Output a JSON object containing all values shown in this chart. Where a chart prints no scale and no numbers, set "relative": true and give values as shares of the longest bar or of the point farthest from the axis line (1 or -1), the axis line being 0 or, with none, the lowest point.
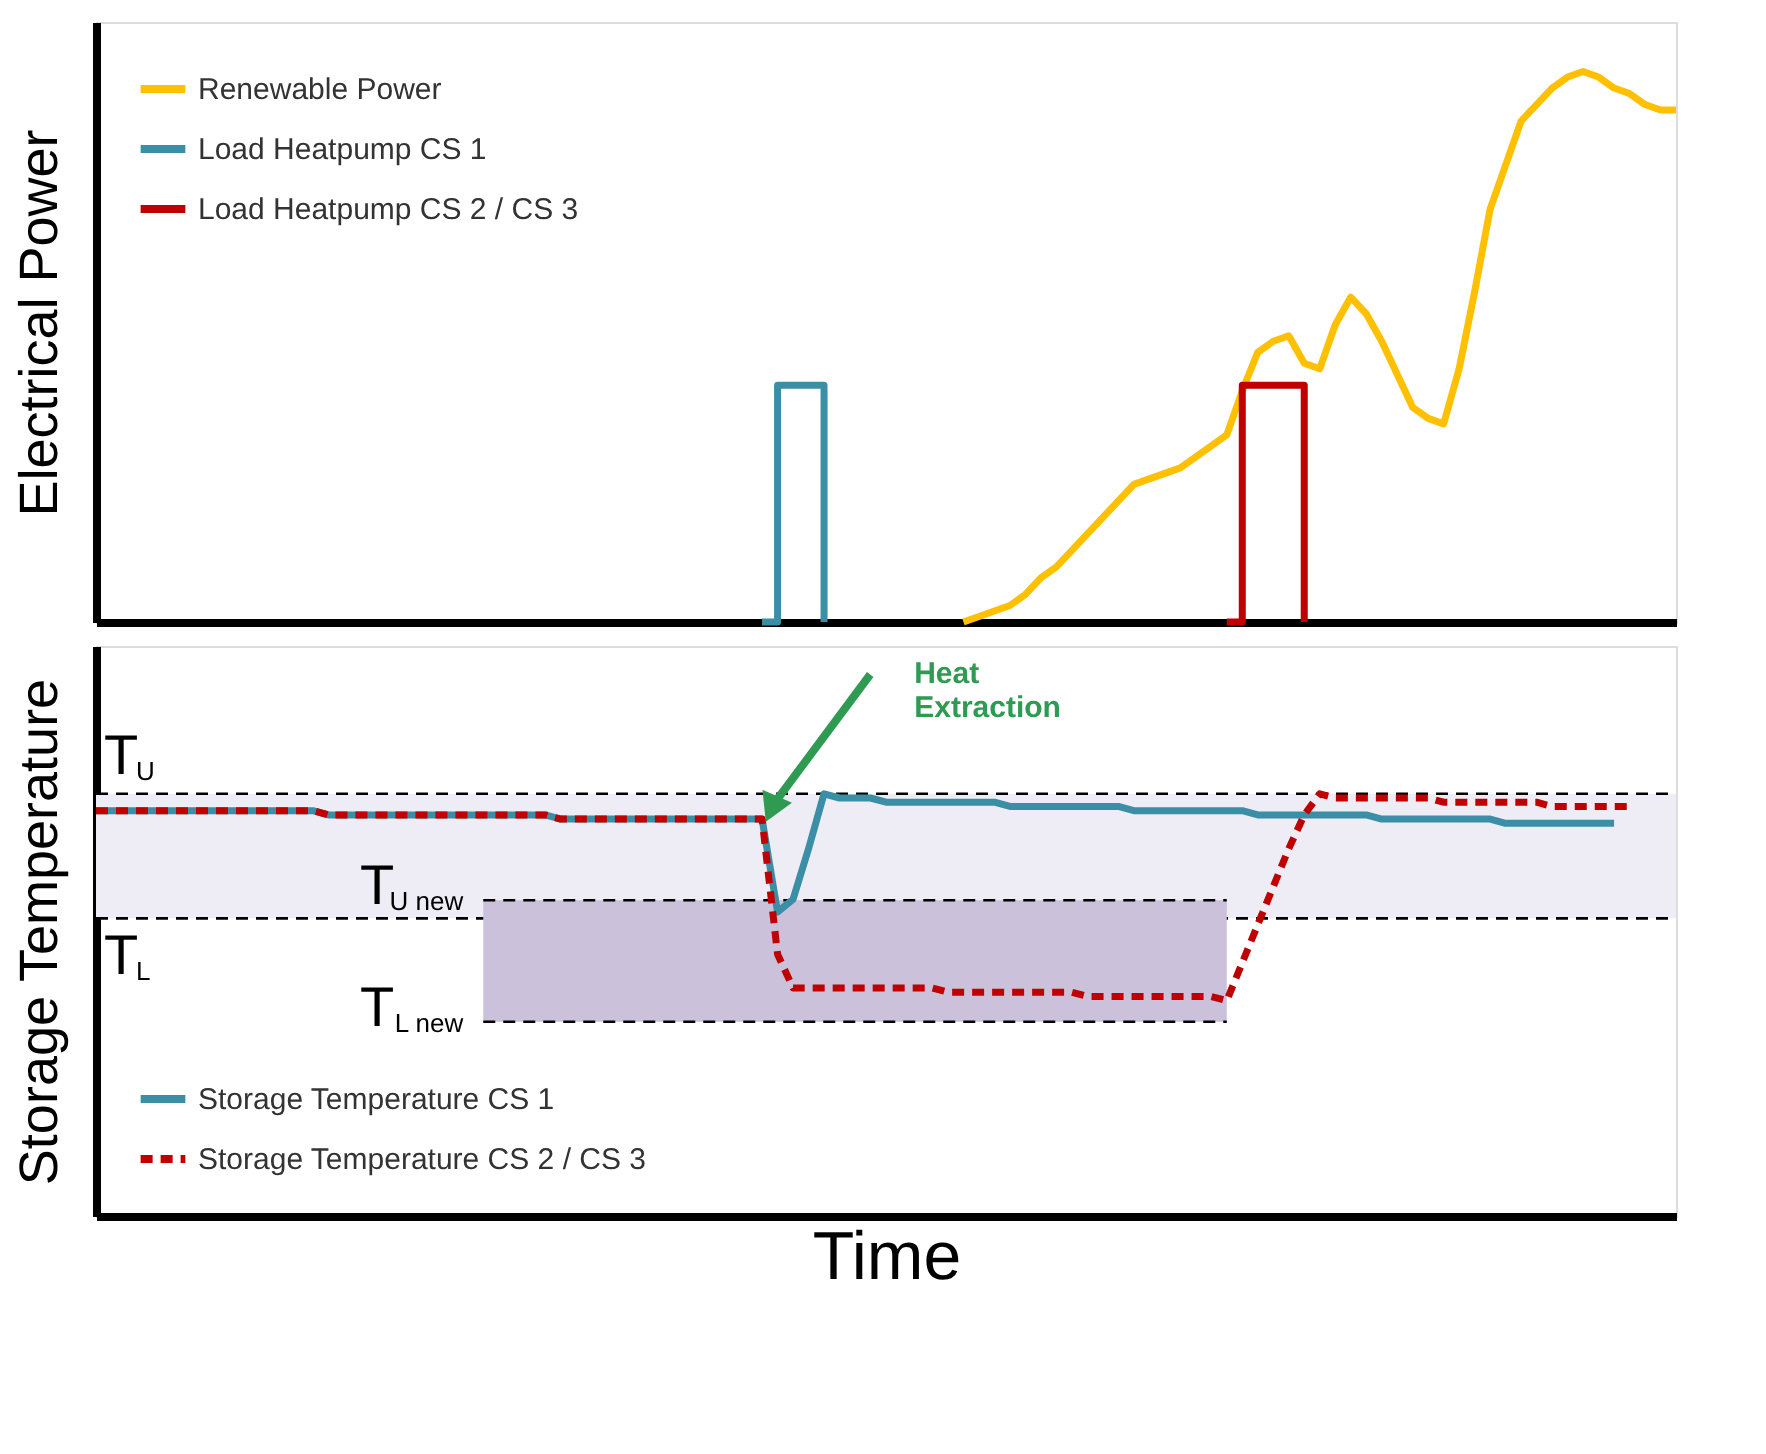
{
  "chart_data": [
    {
      "type": "line",
      "relative": true,
      "ylabel": "Electrical Power",
      "tick_labels": false,
      "grid": false,
      "legend": "top left",
      "categories": [
        null,
        null,
        null,
        null,
        null,
        null,
        null,
        null,
        null,
        null,
        null,
        null,
        null,
        null,
        null,
        null,
        null,
        null,
        null,
        null,
        null,
        null,
        null,
        null,
        null,
        null,
        null,
        null,
        null,
        null,
        null,
        null,
        null,
        null,
        null,
        null,
        null,
        null,
        null,
        null,
        null,
        null,
        null,
        null,
        null,
        null,
        null,
        null,
        null,
        null,
        null,
        null,
        null,
        null,
        null,
        null,
        null,
        null,
        null,
        null,
        null,
        null,
        null,
        null,
        null,
        null,
        null,
        null,
        null,
        null,
        null,
        null,
        null,
        null,
        null,
        null,
        null,
        null,
        null,
        null,
        null,
        null,
        null,
        null,
        null,
        null,
        null,
        null,
        null,
        null,
        null,
        null,
        null,
        null,
        null,
        null,
        null,
        null,
        null,
        null,
        null,
        null,
        null
      ],
      "series": [
        {
          "name": "Renewable Power",
          "color": "#ffc000",
          "values": [
            null,
            null,
            null,
            null,
            null,
            null,
            null,
            null,
            null,
            null,
            null,
            null,
            null,
            null,
            null,
            null,
            null,
            null,
            null,
            null,
            null,
            null,
            null,
            null,
            null,
            null,
            null,
            null,
            null,
            null,
            null,
            null,
            null,
            null,
            null,
            null,
            null,
            null,
            null,
            null,
            null,
            null,
            null,
            null,
            null,
            null,
            null,
            null,
            null,
            null,
            null,
            null,
            null,
            null,
            null,
            null,
            0,
            0.01,
            0.02,
            0.03,
            0.05,
            0.08,
            0.1,
            0.13,
            0.16,
            0.19,
            0.22,
            0.25,
            0.26,
            0.27,
            0.28,
            0.3,
            0.32,
            0.34,
            0.42,
            0.49,
            0.51,
            0.52,
            0.47,
            0.46,
            0.54,
            0.59,
            0.56,
            0.51,
            0.45,
            0.39,
            0.37,
            0.36,
            0.46,
            0.6,
            0.75,
            0.83,
            0.91,
            0.94,
            0.97,
            0.99,
            1.0,
            0.99,
            0.97,
            0.96,
            0.94,
            0.93,
            0.93
          ]
        },
        {
          "name": "Load Heatpump CS 1",
          "type": "step",
          "color": "#3a8ea5",
          "values": [
            null,
            null,
            null,
            null,
            null,
            null,
            null,
            null,
            null,
            null,
            null,
            null,
            null,
            null,
            null,
            null,
            null,
            null,
            null,
            null,
            null,
            null,
            null,
            null,
            null,
            null,
            null,
            null,
            null,
            null,
            null,
            null,
            null,
            null,
            null,
            null,
            null,
            null,
            null,
            null,
            null,
            null,
            null,
            0,
            0.43,
            0.43,
            0.43,
            0,
            null,
            null,
            null,
            null,
            null,
            null,
            null,
            null,
            null,
            null,
            null,
            null,
            null,
            null,
            null,
            null,
            null,
            null,
            null,
            null,
            null,
            null,
            null,
            null,
            null,
            null,
            null,
            null,
            null,
            null,
            null,
            null,
            null,
            null,
            null,
            null,
            null,
            null,
            null,
            null,
            null,
            null,
            null,
            null,
            null,
            null,
            null,
            null,
            null,
            null,
            null,
            null,
            null,
            null,
            null
          ]
        },
        {
          "name": "Load Heatpump CS 2 / CS 3",
          "type": "step",
          "color": "#c00000",
          "values": [
            null,
            null,
            null,
            null,
            null,
            null,
            null,
            null,
            null,
            null,
            null,
            null,
            null,
            null,
            null,
            null,
            null,
            null,
            null,
            null,
            null,
            null,
            null,
            null,
            null,
            null,
            null,
            null,
            null,
            null,
            null,
            null,
            null,
            null,
            null,
            null,
            null,
            null,
            null,
            null,
            null,
            null,
            null,
            null,
            null,
            null,
            null,
            null,
            null,
            null,
            null,
            null,
            null,
            null,
            null,
            null,
            null,
            null,
            null,
            null,
            null,
            null,
            null,
            null,
            null,
            null,
            null,
            null,
            null,
            null,
            null,
            null,
            null,
            0,
            0.43,
            0.43,
            0.43,
            0.43,
            0,
            null,
            null,
            null,
            null,
            null,
            null,
            null,
            null,
            null,
            null,
            null,
            null,
            null,
            null,
            null,
            null,
            null,
            null,
            null,
            null,
            null,
            null,
            null,
            null
          ]
        }
      ]
    },
    {
      "type": "line",
      "relative": true,
      "ylabel": "Storage Temperature",
      "xlabel": "Time",
      "tick_labels": false,
      "grid": false,
      "legend": "bottom left",
      "categories": [
        null,
        null,
        null,
        null,
        null,
        null,
        null,
        null,
        null,
        null,
        null,
        null,
        null,
        null,
        null,
        null,
        null,
        null,
        null,
        null,
        null,
        null,
        null,
        null,
        null,
        null,
        null,
        null,
        null,
        null,
        null,
        null,
        null,
        null,
        null,
        null,
        null,
        null,
        null,
        null,
        null,
        null,
        null,
        null,
        null,
        null,
        null,
        null,
        null,
        null,
        null,
        null,
        null,
        null,
        null,
        null,
        null,
        null,
        null,
        null,
        null,
        null,
        null,
        null,
        null,
        null,
        null,
        null,
        null,
        null,
        null,
        null,
        null,
        null,
        null,
        null,
        null,
        null,
        null,
        null,
        null,
        null,
        null,
        null,
        null,
        null,
        null,
        null,
        null,
        null,
        null,
        null,
        null,
        null,
        null,
        null,
        null,
        null,
        null,
        null,
        null,
        null,
        null
      ],
      "series": [
        {
          "type": "line",
          "color": "#000000",
          "line_style": "dashed",
          "values": [
            null,
            null,
            null,
            null,
            null,
            null,
            null,
            null,
            null,
            null,
            null,
            null,
            null,
            null,
            null,
            null,
            null,
            null,
            null,
            null,
            null,
            null,
            null,
            null,
            null,
            0.748,
            0.748,
            0.748,
            0.748,
            0.748,
            0.748,
            0.748,
            0.748,
            0.748,
            0.748,
            0.748,
            0.748,
            0.748,
            0.748,
            0.748,
            0.748,
            0.748,
            0.748,
            0.748,
            0.748,
            0.748,
            0.748,
            0.748,
            0.748,
            0.748,
            0.748,
            0.748,
            0.748,
            0.748,
            0.748,
            0.748,
            0.748,
            0.748,
            0.748,
            0.748,
            0.748,
            0.748,
            0.748,
            0.748,
            0.748,
            0.748,
            0.748,
            0.748,
            0.748,
            0.748,
            0.748,
            0.748,
            0.748,
            0.748,
            null,
            null,
            null,
            null,
            null,
            null,
            null,
            null,
            null,
            null,
            null,
            null,
            null,
            null,
            null,
            null,
            null,
            null,
            null,
            null,
            null,
            null,
            null,
            null,
            null,
            null,
            null,
            null,
            null
          ],
          "upper": [
            null,
            null,
            null,
            null,
            null,
            null,
            null,
            null,
            null,
            null,
            null,
            null,
            null,
            null,
            null,
            null,
            null,
            null,
            null,
            null,
            null,
            null,
            null,
            null,
            null,
            0.748,
            0.748,
            0.748,
            0.748,
            0.748,
            0.748,
            0.748,
            0.748,
            0.748,
            0.748,
            0.748,
            0.748,
            0.748,
            0.748,
            0.748,
            0.748,
            0.748,
            0.748,
            0.748,
            0.748,
            0.748,
            0.748,
            0.748,
            0.748,
            0.748,
            0.748,
            0.748,
            0.748,
            0.748,
            0.748,
            0.748,
            0.748,
            0.748,
            0.748,
            0.748,
            0.748,
            0.748,
            0.748,
            0.748,
            0.748,
            0.748,
            0.748,
            0.748,
            0.748,
            0.748,
            0.748,
            0.748,
            0.748,
            0.748,
            null,
            null,
            null,
            null,
            null,
            null,
            null,
            null,
            null,
            null,
            null,
            null,
            null,
            null,
            null,
            null,
            null,
            null,
            null,
            null,
            null,
            null,
            null,
            null,
            null,
            null,
            null,
            null,
            null
          ],
          "lower": [
            null,
            null,
            null,
            null,
            null,
            null,
            null,
            null,
            null,
            null,
            null,
            null,
            null,
            null,
            null,
            null,
            null,
            null,
            null,
            null,
            null,
            null,
            null,
            null,
            null,
            0.46,
            0.46,
            0.46,
            0.46,
            0.46,
            0.46,
            0.46,
            0.46,
            0.46,
            0.46,
            0.46,
            0.46,
            0.46,
            0.46,
            0.46,
            0.46,
            0.46,
            0.46,
            0.46,
            0.46,
            0.46,
            0.46,
            0.46,
            0.46,
            0.46,
            0.46,
            0.46,
            0.46,
            0.46,
            0.46,
            0.46,
            0.46,
            0.46,
            0.46,
            0.46,
            0.46,
            0.46,
            0.46,
            0.46,
            0.46,
            0.46,
            0.46,
            0.46,
            0.46,
            0.46,
            0.46,
            0.46,
            0.46,
            0.46,
            null,
            null,
            null,
            null,
            null,
            null,
            null,
            null,
            null,
            null,
            null,
            null,
            null,
            null,
            null,
            null,
            null,
            null,
            null,
            null,
            null,
            null,
            null,
            null,
            null,
            null,
            null,
            null,
            null
          ]
        },
        {
          "type": "line",
          "color": "#000000",
          "line_style": "dashed",
          "values": [
            null,
            null,
            null,
            null,
            null,
            null,
            null,
            null,
            null,
            null,
            null,
            null,
            null,
            null,
            null,
            null,
            null,
            null,
            null,
            null,
            null,
            null,
            null,
            null,
            null,
            0.46,
            0.46,
            0.46,
            0.46,
            0.46,
            0.46,
            0.46,
            0.46,
            0.46,
            0.46,
            0.46,
            0.46,
            0.46,
            0.46,
            0.46,
            0.46,
            0.46,
            0.46,
            0.46,
            0.46,
            0.46,
            0.46,
            0.46,
            0.46,
            0.46,
            0.46,
            0.46,
            0.46,
            0.46,
            0.46,
            0.46,
            0.46,
            0.46,
            0.46,
            0.46,
            0.46,
            0.46,
            0.46,
            0.46,
            0.46,
            0.46,
            0.46,
            0.46,
            0.46,
            0.46,
            0.46,
            0.46,
            0.46,
            0.46,
            null,
            null,
            null,
            null,
            null,
            null,
            null,
            null,
            null,
            null,
            null,
            null,
            null,
            null,
            null,
            null,
            null,
            null,
            null,
            null,
            null,
            null,
            null,
            null,
            null,
            null,
            null,
            null,
            null
          ]
        },
        {
          "name": "Storage Temperature CS 1",
          "color": "#3a8ea5",
          "line_style": "solid",
          "values": [
            0.96,
            0.96,
            0.96,
            0.96,
            0.96,
            0.96,
            0.96,
            0.96,
            0.96,
            0.96,
            0.96,
            0.96,
            0.96,
            0.96,
            0.96,
            0.95,
            0.95,
            0.95,
            0.95,
            0.95,
            0.95,
            0.95,
            0.95,
            0.95,
            0.95,
            0.95,
            0.95,
            0.95,
            0.95,
            0.95,
            0.94,
            0.94,
            0.94,
            0.94,
            0.94,
            0.94,
            0.94,
            0.94,
            0.94,
            0.94,
            0.94,
            0.94,
            0.94,
            0.94,
            0.72,
            0.75,
            0.87,
            1.0,
            0.99,
            0.99,
            0.99,
            0.98,
            0.98,
            0.98,
            0.98,
            0.98,
            0.98,
            0.98,
            0.98,
            0.97,
            0.97,
            0.97,
            0.97,
            0.97,
            0.97,
            0.97,
            0.97,
            0.96,
            0.96,
            0.96,
            0.96,
            0.96,
            0.96,
            0.96,
            0.96,
            0.95,
            0.95,
            0.95,
            0.95,
            0.95,
            0.95,
            0.95,
            0.95,
            0.94,
            0.94,
            0.94,
            0.94,
            0.94,
            0.94,
            0.94,
            0.94,
            0.93,
            0.93,
            0.93,
            0.93,
            0.93,
            0.93,
            0.93,
            0.93,
            null,
            null,
            null,
            null
          ]
        },
        {
          "name": "Storage Temperature CS 2 / CS 3",
          "color": "#c00000",
          "line_style": "dashed",
          "values": [
            0.96,
            0.96,
            0.96,
            0.96,
            0.96,
            0.96,
            0.96,
            0.96,
            0.96,
            0.96,
            0.96,
            0.96,
            0.96,
            0.96,
            0.96,
            0.95,
            0.95,
            0.95,
            0.95,
            0.95,
            0.95,
            0.95,
            0.95,
            0.95,
            0.95,
            0.95,
            0.95,
            0.95,
            0.95,
            0.95,
            0.94,
            0.94,
            0.94,
            0.94,
            0.94,
            0.94,
            0.94,
            0.94,
            0.94,
            0.94,
            0.94,
            0.94,
            0.94,
            0.94,
            0.62,
            0.54,
            0.54,
            0.54,
            0.54,
            0.54,
            0.54,
            0.54,
            0.54,
            0.54,
            0.54,
            0.53,
            0.53,
            0.53,
            0.53,
            0.53,
            0.53,
            0.53,
            0.53,
            0.53,
            0.52,
            0.52,
            0.52,
            0.52,
            0.52,
            0.52,
            0.52,
            0.52,
            0.52,
            0.51,
            0.6,
            0.69,
            0.78,
            0.87,
            0.95,
            1.0,
            0.99,
            0.99,
            0.99,
            0.99,
            0.99,
            0.99,
            0.99,
            0.98,
            0.98,
            0.98,
            0.98,
            0.98,
            0.98,
            0.98,
            0.97,
            0.97,
            0.97,
            0.97,
            0.97,
            0.97,
            null,
            null,
            null
          ]
        }
      ],
      "bands": [
        {
          "axis": "y",
          "from": 0.705,
          "to": 1.0,
          "color": "#eeecf4"
        }
      ],
      "ref_lines": [
        {
          "axis": "y",
          "value": 1.0,
          "label": "T$_{U}$",
          "color": "#000000",
          "line_style": "dashed"
        },
        {
          "axis": "y",
          "value": 0.705,
          "label": "T$_{L}$",
          "color": "#000000",
          "line_style": "dashed"
        }
      ],
      "annotations": [
        "T$_{U new}$",
        "T$_{L new}$",
        "Heat\nExtraction"
      ]
    }
  ]
}
